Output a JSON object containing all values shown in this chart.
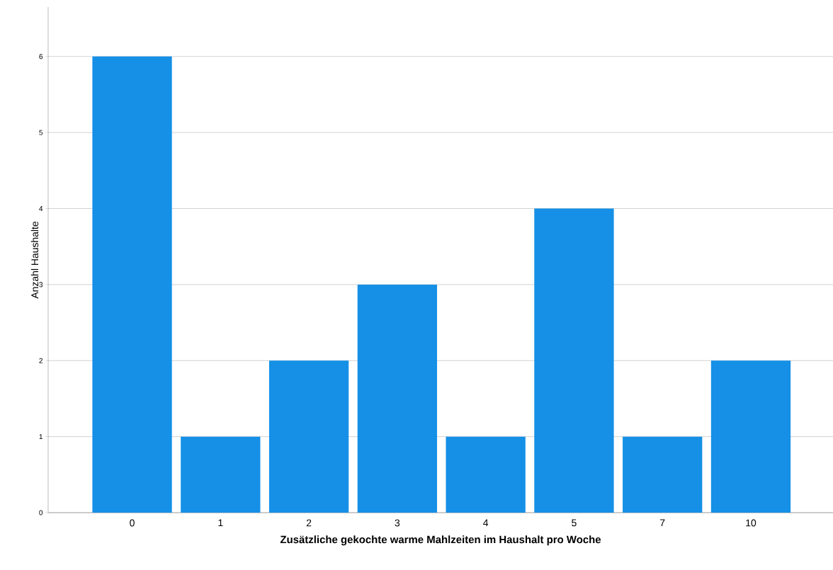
{
  "chart_data": {
    "type": "bar",
    "xlabel": "Zusätzliche gekochte warme Mahlzeiten im Haushalt pro Woche",
    "ylabel": "Anzahl Haushalte",
    "categories": [
      "0",
      "1",
      "2",
      "3",
      "4",
      "5",
      "7",
      "10"
    ],
    "values": [
      6,
      1,
      2,
      3,
      1,
      4,
      1,
      2
    ],
    "color": "#1590e6",
    "ylim": [
      0,
      6.65
    ],
    "yticks": [
      0,
      1,
      2,
      3,
      4,
      5,
      6
    ],
    "grid": "y"
  }
}
